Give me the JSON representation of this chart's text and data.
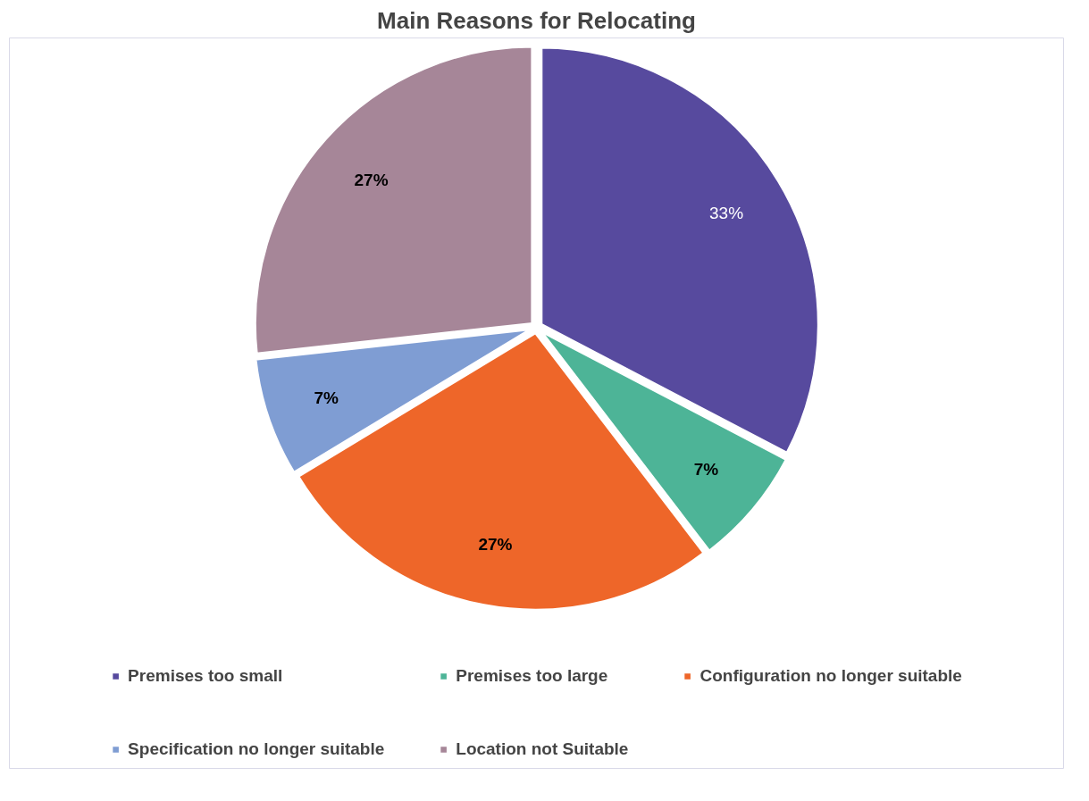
{
  "chart_data": {
    "type": "pie",
    "title": "Main Reasons for Relocating",
    "categories": [
      "Premises too small",
      "Premises too large",
      "Configuration no longer suitable",
      "Specification no longer suitable",
      "Location not Suitable"
    ],
    "values": [
      33,
      7,
      27,
      7,
      27
    ],
    "colors": [
      "#574a9e",
      "#4db497",
      "#ee6629",
      "#7f9dd3",
      "#a68698"
    ],
    "value_labels": [
      "33%",
      "7%",
      "27%",
      "7%",
      "27%"
    ],
    "legend": "bottom"
  }
}
